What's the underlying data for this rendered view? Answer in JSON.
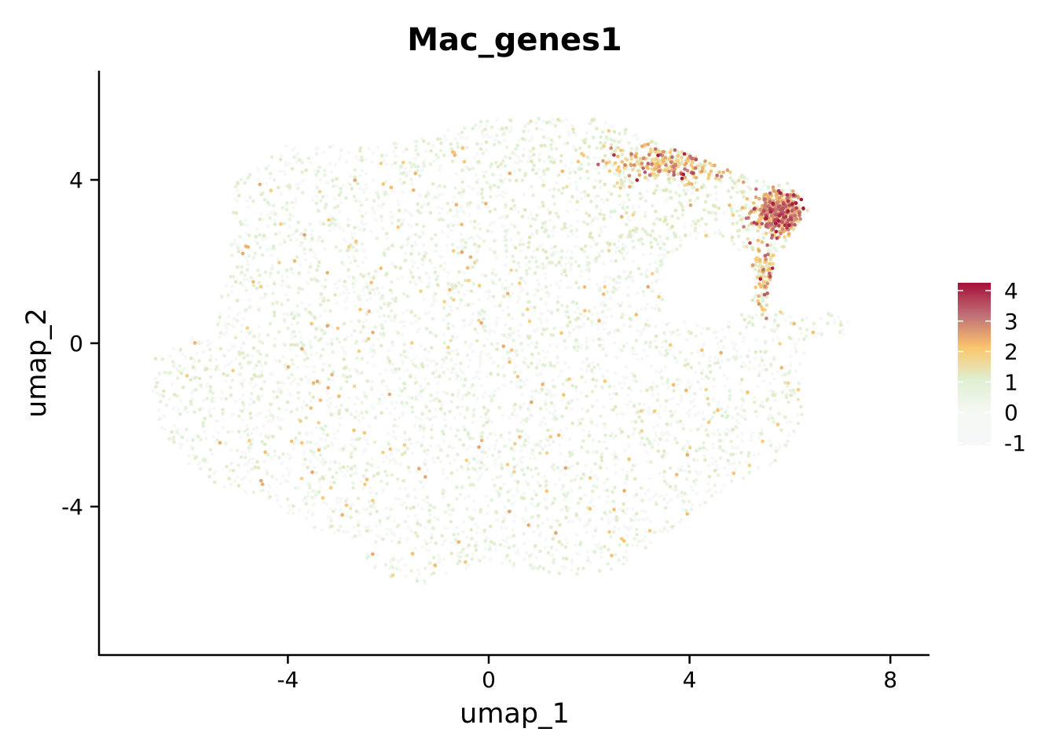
{
  "chart_data": {
    "type": "scatter",
    "title": "Mac_genes1",
    "xlabel": "umap_1",
    "ylabel": "umap_2",
    "xlim": [
      -7.7,
      8.8
    ],
    "ylim": [
      -7.6,
      6.6
    ],
    "x_ticks": [
      -4,
      0,
      4,
      8
    ],
    "x_tick_labels": [
      "-4",
      "0",
      "4",
      "8"
    ],
    "y_ticks": [
      -4,
      0,
      4
    ],
    "y_tick_labels": [
      "-4",
      "0",
      "4"
    ],
    "grid": false,
    "legend": {
      "title": "",
      "placement": "right",
      "min": -1,
      "max": 4,
      "ticks": [
        4,
        3,
        2,
        1,
        0,
        -1
      ],
      "tick_labels": [
        "4",
        "3",
        "2",
        "1",
        "0",
        "-1"
      ],
      "colors": [
        {
          "value": -1,
          "color": "#f7f7f9"
        },
        {
          "value": 0,
          "color": "#f5f8f4"
        },
        {
          "value": 1,
          "color": "#dff0d3"
        },
        {
          "value": 2,
          "color": "#fbc66d"
        },
        {
          "value": 3,
          "color": "#c07077"
        },
        {
          "value": 4,
          "color": "#a50f38"
        }
      ]
    },
    "high_regions": [
      {
        "name": "upper-right cluster",
        "center": [
          5.8,
          3.2
        ],
        "spread": [
          0.45,
          0.45
        ],
        "mean_value": 2.3
      },
      {
        "name": "upper arc",
        "center": [
          3.6,
          4.4
        ],
        "spread": [
          1.1,
          0.45
        ],
        "mean_value": 1.8
      },
      {
        "name": "descending tail",
        "center": [
          5.5,
          1.7
        ],
        "spread": [
          0.2,
          0.8
        ],
        "mean_value": 1.7
      }
    ]
  }
}
